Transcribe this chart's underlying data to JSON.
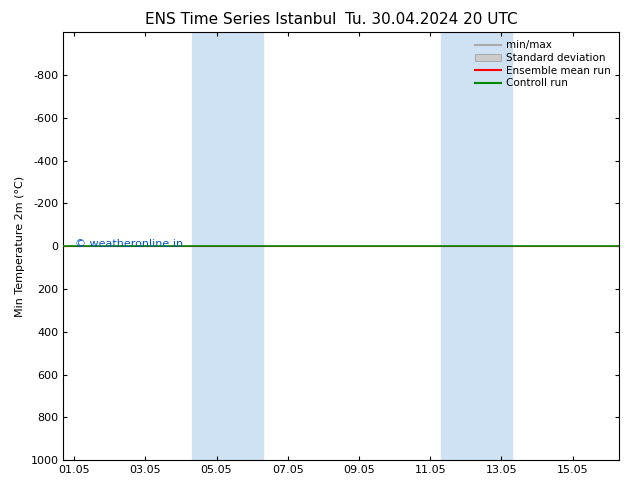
{
  "title": "ENS Time Series Istanbul",
  "title2": "Tu. 30.04.2024 20 UTC",
  "ylabel": "Min Temperature 2m (°C)",
  "ylim": [
    1000,
    -1000
  ],
  "yticks": [
    1000,
    800,
    600,
    400,
    200,
    0,
    -200,
    -400,
    -600,
    -800
  ],
  "xtick_labels": [
    "01.05",
    "03.05",
    "05.05",
    "07.05",
    "09.05",
    "11.05",
    "13.05",
    "15.05"
  ],
  "xtick_positions": [
    0,
    2,
    4,
    6,
    8,
    10,
    12,
    14
  ],
  "xlim": [
    -0.3,
    15.3
  ],
  "shaded_bands": [
    {
      "x_start": 3.3,
      "x_end": 5.3
    },
    {
      "x_start": 10.3,
      "x_end": 12.3
    }
  ],
  "shaded_color": "#cfe2f3",
  "control_run_y": 0.0,
  "control_run_color": "#008800",
  "ensemble_mean_color": "#ff0000",
  "min_max_color": "#aaaaaa",
  "std_dev_color": "#cccccc",
  "watermark": "© weatheronline.in",
  "watermark_color": "#0055cc",
  "background_color": "#ffffff",
  "legend_labels": [
    "min/max",
    "Standard deviation",
    "Ensemble mean run",
    "Controll run"
  ],
  "legend_colors": [
    "#aaaaaa",
    "#cccccc",
    "#ff0000",
    "#008800"
  ],
  "title_fontsize": 11,
  "axis_fontsize": 8,
  "legend_fontsize": 7.5
}
